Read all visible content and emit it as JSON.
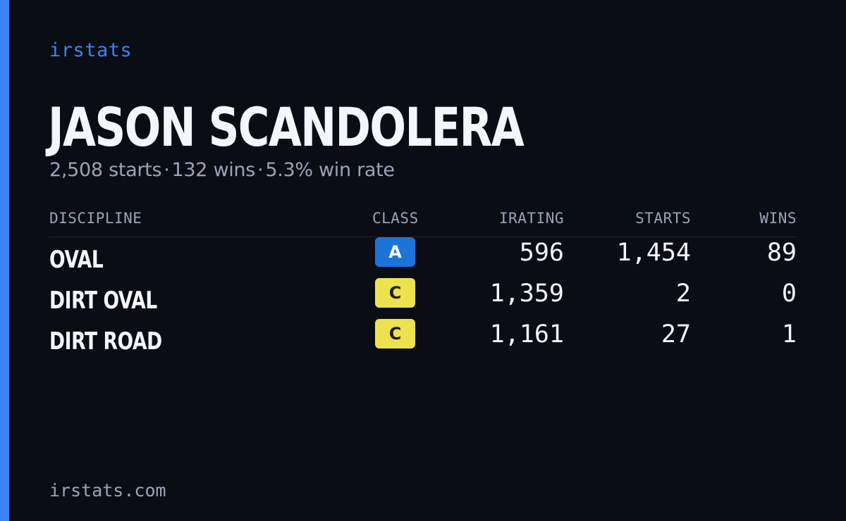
{
  "brand": "irstats",
  "player": {
    "name": "JASON SCANDOLERA",
    "starts_text": "2,508 starts",
    "separator": "·",
    "wins_text": "132 wins",
    "win_rate_text": "5.3% win rate"
  },
  "table": {
    "headers": {
      "discipline": "DISCIPLINE",
      "class": "CLASS",
      "irating": "IRATING",
      "starts": "STARTS",
      "wins": "WINS"
    },
    "rows": [
      {
        "discipline": "OVAL",
        "class": "A",
        "irating": "596",
        "starts": "1,454",
        "wins": "89"
      },
      {
        "discipline": "DIRT OVAL",
        "class": "C",
        "irating": "1,359",
        "starts": "2",
        "wins": "0"
      },
      {
        "discipline": "DIRT ROAD",
        "class": "C",
        "irating": "1,161",
        "starts": "27",
        "wins": "1"
      }
    ]
  },
  "footer": "irstats.com",
  "colors": {
    "background": "#0a0d14",
    "accent": "#3b82f6",
    "class_a": "#1d74d8",
    "class_c": "#ece24d",
    "muted_text": "#9aa4b8"
  }
}
